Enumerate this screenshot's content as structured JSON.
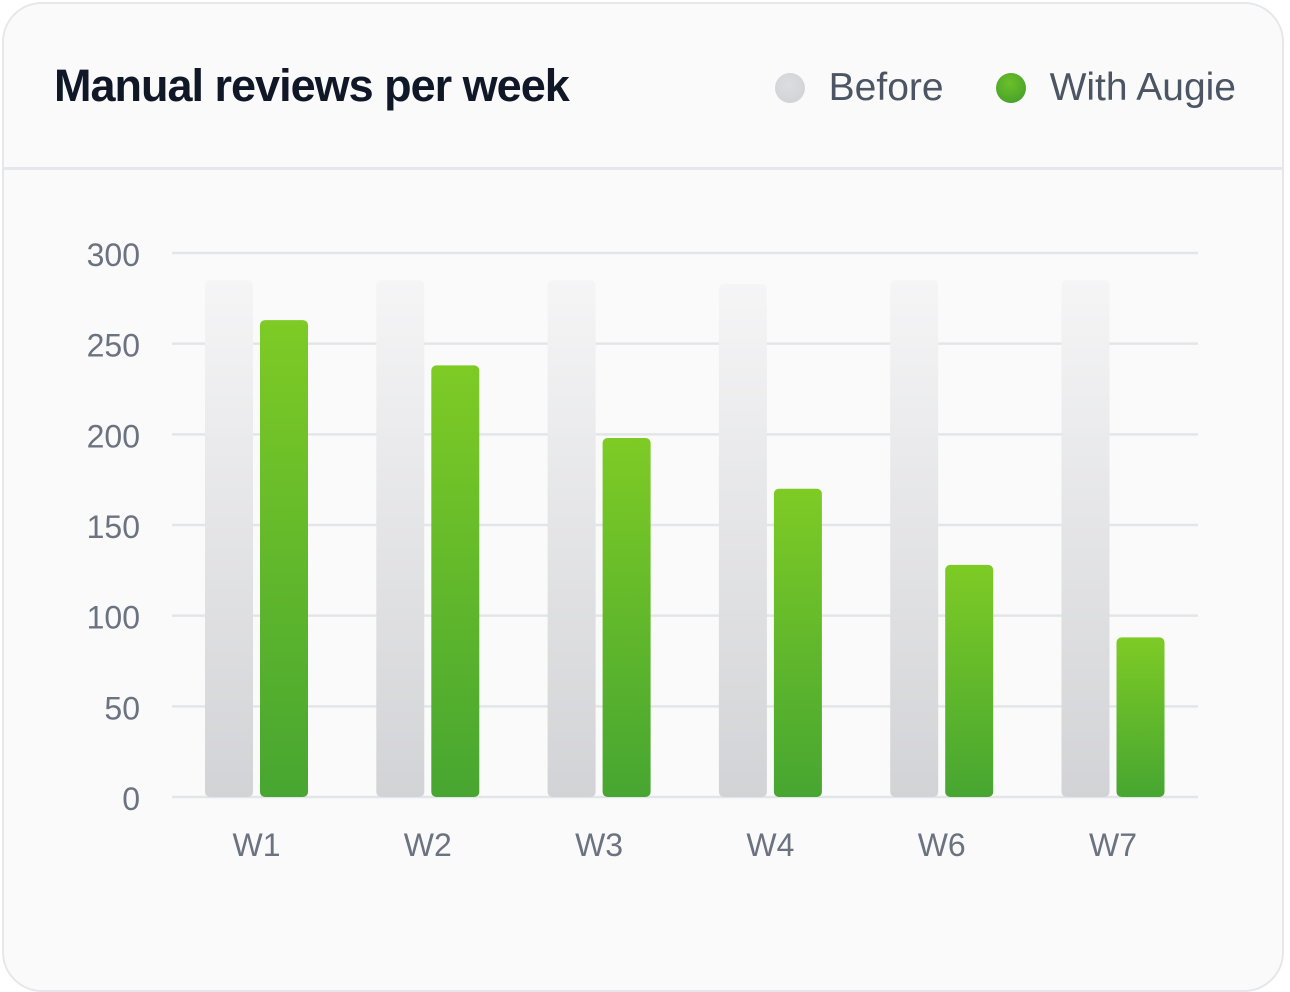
{
  "header": {
    "title": "Manual reviews per week"
  },
  "legend": [
    {
      "label": "Before",
      "color": "#d6d7da"
    },
    {
      "label": "With Augie",
      "color": "#4caa2e"
    }
  ],
  "colors": {
    "before_top": "#f5f5f6",
    "before_bottom": "#d2d3d6",
    "after_top": "#7ecb25",
    "after_bottom": "#47a631",
    "grid": "#e4e5e8",
    "tick_text": "#6b7280"
  },
  "chart_data": {
    "type": "bar",
    "title": "Manual reviews per week",
    "categories": [
      "W1",
      "W2",
      "W3",
      "W4",
      "W6",
      "W7"
    ],
    "series": [
      {
        "name": "Before",
        "values": [
          285,
          285,
          285,
          283,
          285,
          285
        ]
      },
      {
        "name": "With Augie",
        "values": [
          263,
          238,
          198,
          170,
          128,
          88
        ]
      }
    ],
    "yticks": [
      0,
      50,
      100,
      150,
      200,
      250,
      300
    ],
    "ylim": [
      0,
      300
    ],
    "xlabel": "",
    "ylabel": "",
    "grid": true,
    "legend_position": "top-right"
  }
}
